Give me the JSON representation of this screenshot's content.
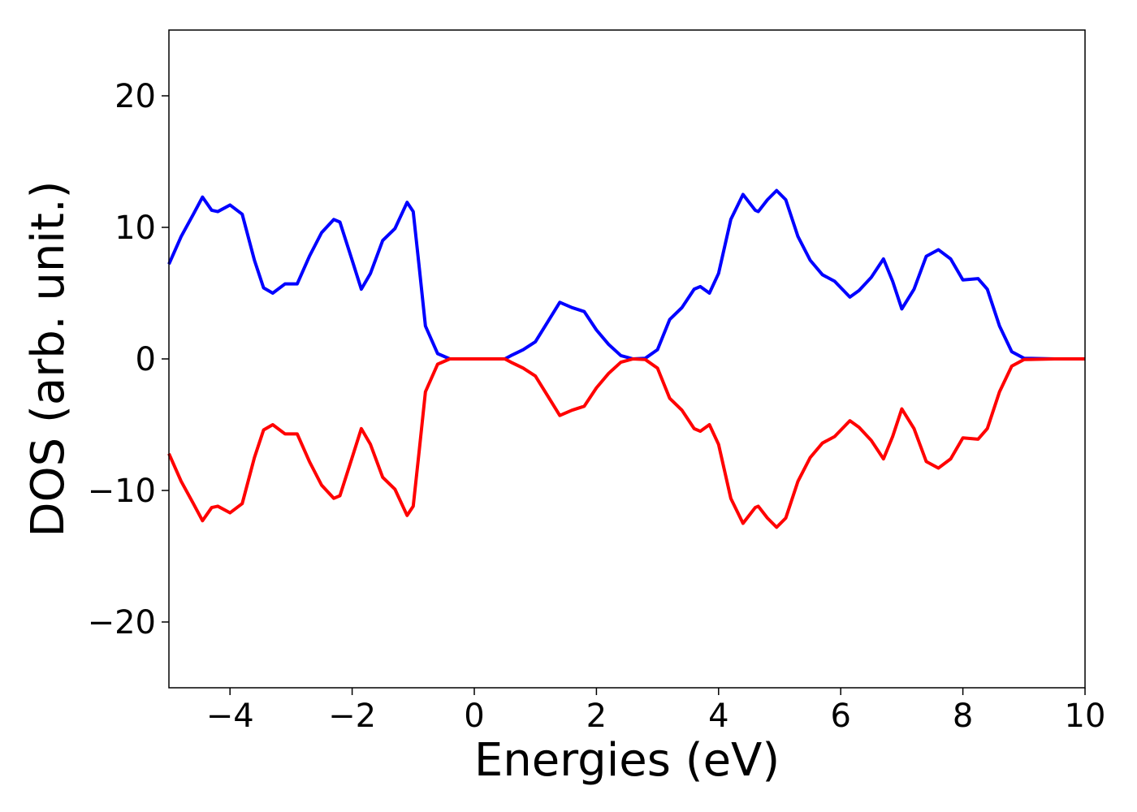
{
  "chart_data": {
    "type": "line",
    "xlabel": "Energies (eV)",
    "ylabel": "DOS (arb. unit.)",
    "xlim": [
      -5,
      10
    ],
    "ylim": [
      -25,
      25
    ],
    "xticks": [
      {
        "value": -4,
        "label": "−4"
      },
      {
        "value": -2,
        "label": "−2"
      },
      0,
      2,
      4,
      6,
      8,
      10
    ],
    "yticks": [
      {
        "value": -20,
        "label": "−20"
      },
      {
        "value": -10,
        "label": "−10"
      },
      0,
      10,
      20
    ],
    "x": [
      -5,
      -4.8,
      -4.6,
      -4.45,
      -4.3,
      -4.2,
      -4.0,
      -3.8,
      -3.6,
      -3.45,
      -3.3,
      -3.1,
      -2.9,
      -2.7,
      -2.5,
      -2.3,
      -2.2,
      -2.0,
      -1.85,
      -1.7,
      -1.5,
      -1.3,
      -1.1,
      -1.0,
      -0.9,
      -0.8,
      -0.6,
      -0.4,
      0.0,
      0.5,
      0.6,
      0.8,
      1.0,
      1.2,
      1.4,
      1.6,
      1.8,
      2.0,
      2.2,
      2.4,
      2.6,
      2.8,
      3.0,
      3.2,
      3.4,
      3.6,
      3.7,
      3.85,
      4.0,
      4.2,
      4.4,
      4.6,
      4.65,
      4.8,
      4.95,
      5.1,
      5.3,
      5.5,
      5.7,
      5.9,
      6.15,
      6.3,
      6.5,
      6.7,
      6.85,
      7.0,
      7.2,
      7.4,
      7.6,
      7.8,
      8.0,
      8.25,
      8.4,
      8.6,
      8.8,
      9.0,
      9.5,
      10
    ],
    "series": [
      {
        "color": "#0000ff",
        "values": [
          7.2,
          9.3,
          11,
          12.3,
          11.3,
          11.2,
          11.7,
          11,
          7.5,
          5.4,
          5,
          5.7,
          5.7,
          7.8,
          9.6,
          10.6,
          10.4,
          7.5,
          5.3,
          6.5,
          9,
          9.9,
          11.9,
          11.2,
          6.9,
          2.5,
          0.4,
          0,
          0,
          0,
          0.25,
          0.7,
          1.3,
          2.8,
          4.3,
          3.9,
          3.6,
          2.2,
          1.1,
          0.25,
          0,
          0.05,
          0.7,
          3,
          3.9,
          5.3,
          5.5,
          5,
          6.5,
          10.6,
          12.5,
          11.3,
          11.2,
          12.1,
          12.8,
          12.1,
          9.3,
          7.5,
          6.4,
          5.9,
          4.7,
          5.2,
          6.2,
          7.6,
          5.9,
          3.8,
          5.3,
          7.8,
          8.3,
          7.6,
          6,
          6.1,
          5.3,
          2.5,
          0.55,
          0.05,
          0,
          0
        ]
      },
      {
        "color": "#ff0000",
        "values": [
          -7.2,
          -9.3,
          -11,
          -12.3,
          -11.3,
          -11.2,
          -11.7,
          -11,
          -7.5,
          -5.4,
          -5,
          -5.7,
          -5.7,
          -7.8,
          -9.6,
          -10.6,
          -10.4,
          -7.5,
          -5.3,
          -6.5,
          -9,
          -9.9,
          -11.9,
          -11.2,
          -6.9,
          -2.5,
          -0.4,
          0,
          0,
          0,
          -0.25,
          -0.7,
          -1.3,
          -2.8,
          -4.3,
          -3.9,
          -3.6,
          -2.2,
          -1.1,
          -0.25,
          0,
          -0.05,
          -0.7,
          -3,
          -3.9,
          -5.3,
          -5.5,
          -5,
          -6.5,
          -10.6,
          -12.5,
          -11.3,
          -11.2,
          -12.1,
          -12.8,
          -12.1,
          -9.3,
          -7.5,
          -6.4,
          -5.9,
          -4.7,
          -5.2,
          -6.2,
          -7.6,
          -5.9,
          -3.8,
          -5.3,
          -7.8,
          -8.3,
          -7.6,
          -6,
          -6.1,
          -5.3,
          -2.5,
          -0.55,
          -0.05,
          0,
          0
        ]
      }
    ]
  }
}
